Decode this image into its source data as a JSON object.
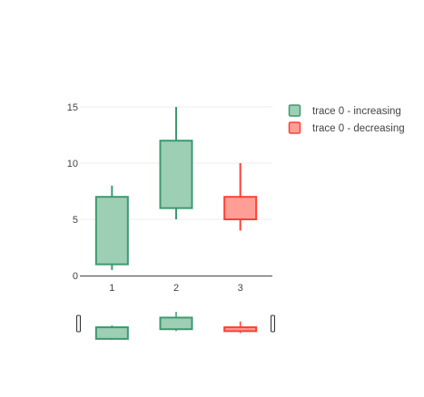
{
  "chart_data": {
    "type": "candlestick",
    "x": [
      1,
      2,
      3
    ],
    "x_tick_labels": [
      "1",
      "2",
      "3"
    ],
    "y_tick_labels": [
      "0",
      "5",
      "10",
      "15"
    ],
    "ylim": [
      0,
      15
    ],
    "grid": true,
    "legend_position": "top-right",
    "series": [
      {
        "name": "trace 0",
        "open": [
          1,
          6,
          7
        ],
        "high": [
          8,
          15,
          10
        ],
        "low": [
          0.5,
          5,
          4
        ],
        "close": [
          7,
          12,
          5
        ]
      }
    ],
    "legend": [
      {
        "label": "trace 0 - increasing",
        "fill": "#9dcfb5",
        "stroke": "#3d9970"
      },
      {
        "label": "trace 0 - decreasing",
        "fill": "#ff9e97",
        "stroke": "#ff4136"
      }
    ],
    "colors": {
      "increasing_fill": "#9dcfb5",
      "increasing_line": "#3d9970",
      "decreasing_fill": "#ff9e97",
      "decreasing_line": "#ff4136",
      "grid": "#eeeeee",
      "axis_text": "#444444"
    },
    "range_slider": true
  }
}
